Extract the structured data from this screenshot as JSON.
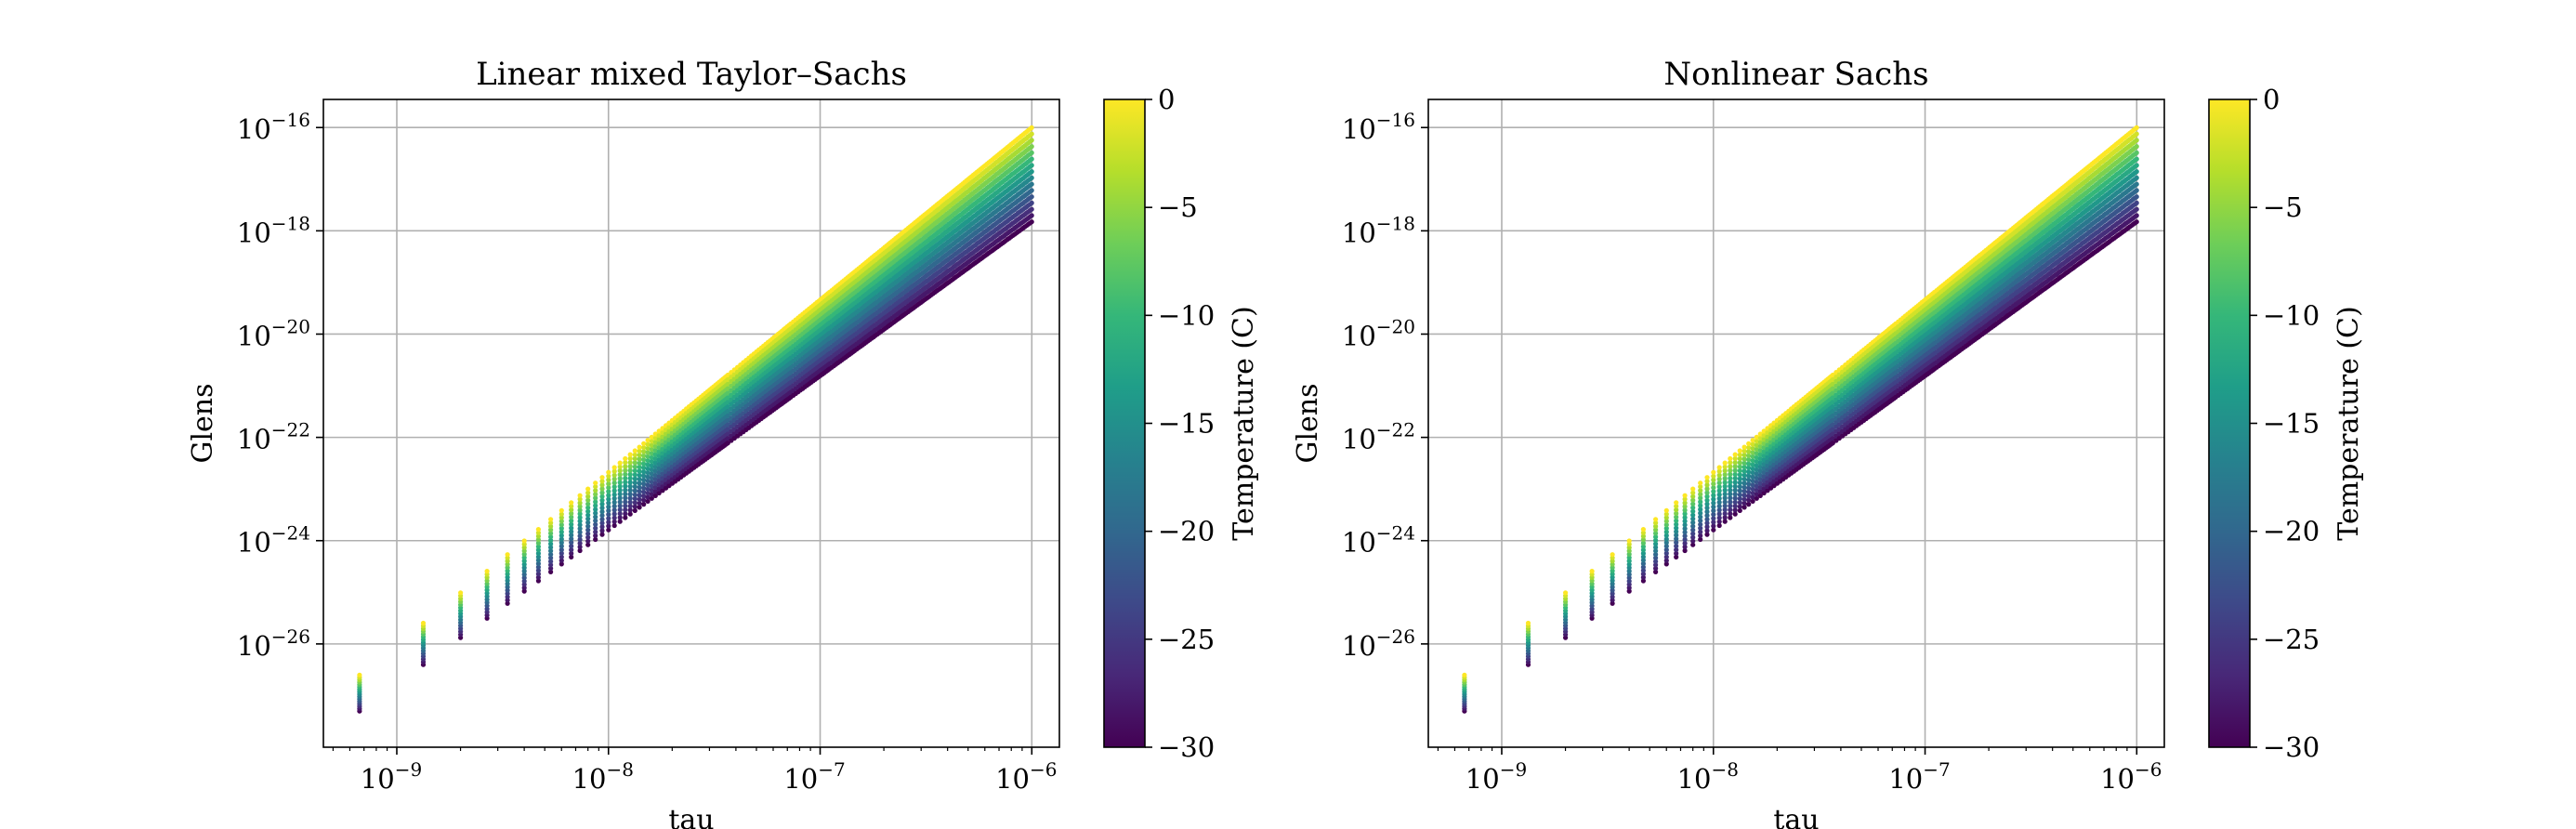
{
  "chart_data": [
    {
      "type": "scatter",
      "title": "Linear mixed Taylor–Sachs",
      "xlabel": "tau",
      "ylabel": "Glens",
      "xscale": "log",
      "yscale": "log",
      "xlim": [
        4.5e-10,
        1.35e-06
      ],
      "ylim": [
        1e-28,
        3.5e-16
      ],
      "xticks": [
        1e-09,
        1e-08,
        1e-07,
        1e-06
      ],
      "xtick_labels": [
        "10",
        "10",
        "10",
        "10"
      ],
      "xtick_exps": [
        "−9",
        "−8",
        "−7",
        "−6"
      ],
      "yticks": [
        1e-26,
        1e-24,
        1e-22,
        1e-20,
        1e-18,
        1e-16
      ],
      "ytick_labels": [
        "10",
        "10",
        "10",
        "10",
        "10",
        "10"
      ],
      "ytick_exps": [
        "−26",
        "−24",
        "−22",
        "−20",
        "−18",
        "−16"
      ],
      "grid": true,
      "series_model": {
        "tau_start": 6.67e-10,
        "tau_end": 1e-06,
        "tau_count": 1500,
        "temperatures_C": [
          -30,
          -28,
          -26,
          -24,
          -22,
          -20,
          -18,
          -16,
          -14,
          -12,
          -10,
          -8,
          -6,
          -4,
          -2,
          0
        ],
        "glens_at_start_coldest": 5e-28,
        "glens_at_start_warmest": 2.5e-27,
        "glens_at_end_coldest": 1.5e-18,
        "glens_at_end_warmest": 1e-16
      },
      "colorbar": {
        "label": "Temperature (C)",
        "vmin": -30,
        "vmax": 0,
        "ticks": [
          0,
          -5,
          -10,
          -15,
          -20,
          -25,
          -30
        ],
        "tick_labels": [
          "0",
          "−5",
          "−10",
          "−15",
          "−20",
          "−25",
          "−30"
        ],
        "colormap": "viridis",
        "colors": [
          "#440154",
          "#482878",
          "#3e4989",
          "#31688e",
          "#26828e",
          "#1f9e89",
          "#35b779",
          "#6ece58",
          "#b5de2b",
          "#fde725"
        ]
      }
    },
    {
      "type": "scatter",
      "title": "Nonlinear Sachs",
      "xlabel": "tau",
      "ylabel": "Glens",
      "xscale": "log",
      "yscale": "log",
      "xlim": [
        4.5e-10,
        1.35e-06
      ],
      "ylim": [
        1e-28,
        3.5e-16
      ],
      "xticks": [
        1e-09,
        1e-08,
        1e-07,
        1e-06
      ],
      "xtick_labels": [
        "10",
        "10",
        "10",
        "10"
      ],
      "xtick_exps": [
        "−9",
        "−8",
        "−7",
        "−6"
      ],
      "yticks": [
        1e-26,
        1e-24,
        1e-22,
        1e-20,
        1e-18,
        1e-16
      ],
      "ytick_labels": [
        "10",
        "10",
        "10",
        "10",
        "10",
        "10"
      ],
      "ytick_exps": [
        "−26",
        "−24",
        "−22",
        "−20",
        "−18",
        "−16"
      ],
      "grid": true,
      "series_model": {
        "tau_start": 6.67e-10,
        "tau_end": 1e-06,
        "tau_count": 1500,
        "temperatures_C": [
          -30,
          -28,
          -26,
          -24,
          -22,
          -20,
          -18,
          -16,
          -14,
          -12,
          -10,
          -8,
          -6,
          -4,
          -2,
          0
        ],
        "glens_at_start_coldest": 5e-28,
        "glens_at_start_warmest": 2.5e-27,
        "glens_at_end_coldest": 1.5e-18,
        "glens_at_end_warmest": 1e-16
      },
      "colorbar": {
        "label": "Temperature (C)",
        "vmin": -30,
        "vmax": 0,
        "ticks": [
          0,
          -5,
          -10,
          -15,
          -20,
          -25,
          -30
        ],
        "tick_labels": [
          "0",
          "−5",
          "−10",
          "−15",
          "−20",
          "−25",
          "−30"
        ],
        "colormap": "viridis",
        "colors": [
          "#440154",
          "#482878",
          "#3e4989",
          "#31688e",
          "#26828e",
          "#1f9e89",
          "#35b779",
          "#6ece58",
          "#b5de2b",
          "#fde725"
        ]
      }
    }
  ]
}
